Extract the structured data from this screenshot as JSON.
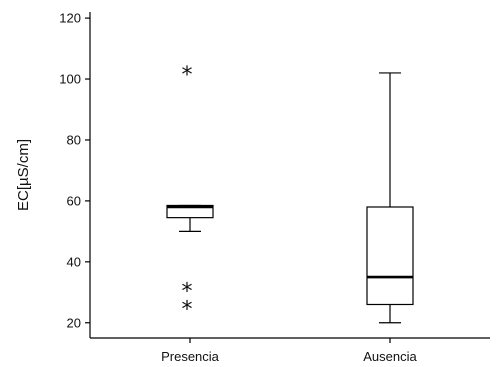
{
  "chart_data": {
    "type": "boxplot",
    "title": "",
    "xlabel": "",
    "ylabel": "EC[µS/cm]",
    "ylim": [
      15,
      122
    ],
    "yticks": [
      20,
      40,
      60,
      80,
      100,
      120
    ],
    "grid": false,
    "categories": [
      "Presencia",
      "Ausencia"
    ],
    "boxes": [
      {
        "category": "Presencia",
        "min": 50,
        "q1": 54.5,
        "median": 58,
        "q3": 58.5,
        "max": 58.5,
        "outliers": [
          102,
          31,
          25
        ]
      },
      {
        "category": "Ausencia",
        "min": 20,
        "q1": 26,
        "median": 35,
        "q3": 58,
        "max": 102,
        "outliers": []
      }
    ]
  }
}
